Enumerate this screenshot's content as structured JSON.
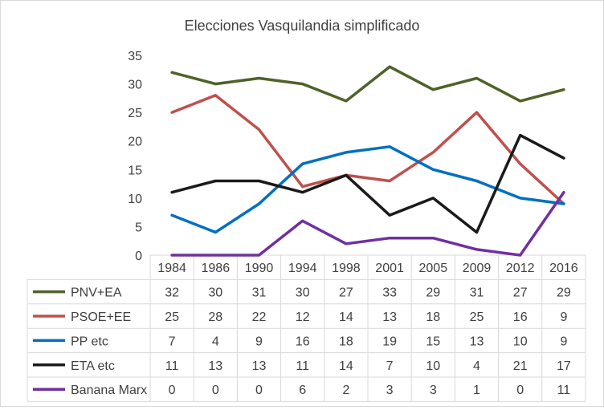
{
  "chart_data": {
    "type": "line",
    "title": "Elecciones Vasquilandia simplificado",
    "categories": [
      "1984",
      "1986",
      "1990",
      "1994",
      "1998",
      "2001",
      "2005",
      "2009",
      "2012",
      "2016"
    ],
    "ylim": [
      0,
      35
    ],
    "yticks": [
      0,
      5,
      10,
      15,
      20,
      25,
      30,
      35
    ],
    "grid": false,
    "legend": "data-table-bottom",
    "series": [
      {
        "name": "PNV+EA",
        "color": "#4f6228",
        "values": [
          32,
          30,
          31,
          30,
          27,
          33,
          29,
          31,
          27,
          29
        ]
      },
      {
        "name": "PSOE+EE",
        "color": "#c0504d",
        "values": [
          25,
          28,
          22,
          12,
          14,
          13,
          18,
          25,
          16,
          9
        ]
      },
      {
        "name": "PP etc",
        "color": "#0070c0",
        "values": [
          7,
          4,
          9,
          16,
          18,
          19,
          15,
          13,
          10,
          9
        ]
      },
      {
        "name": "ETA etc",
        "color": "#1a1a1a",
        "values": [
          11,
          13,
          13,
          11,
          14,
          7,
          10,
          4,
          21,
          17
        ]
      },
      {
        "name": "Banana Marx",
        "color": "#7030a0",
        "values": [
          0,
          0,
          0,
          6,
          2,
          3,
          3,
          1,
          0,
          11
        ]
      }
    ]
  }
}
